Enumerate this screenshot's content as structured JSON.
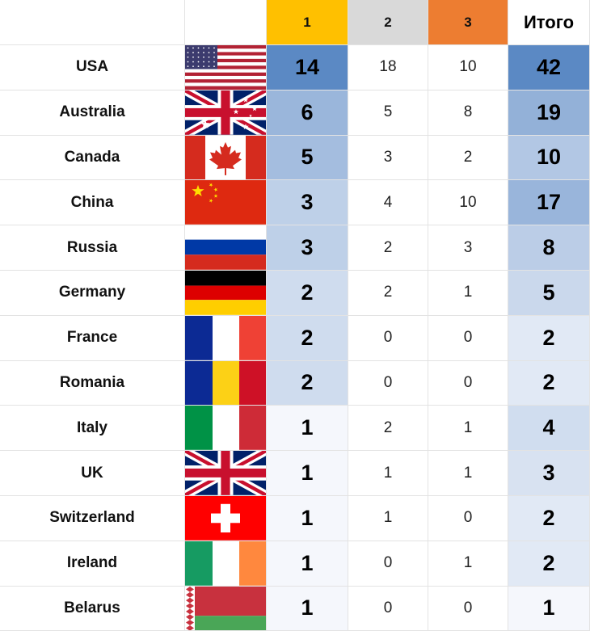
{
  "header": {
    "col_gold": "1",
    "col_silver": "2",
    "col_bronze": "3",
    "col_total": "Итого"
  },
  "colors": {
    "gold_header": "#ffc000",
    "silver_header": "#d9d9d9",
    "bronze_header": "#ed7d31",
    "scale_high": "#5b89c4",
    "scale_low": "#f5f7fc"
  },
  "rows": [
    {
      "country": "USA",
      "flag": "usa-flag-icon",
      "gold": 14,
      "silver": 18,
      "bronze": 10,
      "total": 42
    },
    {
      "country": "Australia",
      "flag": "australia-flag-icon",
      "gold": 6,
      "silver": 5,
      "bronze": 8,
      "total": 19
    },
    {
      "country": "Canada",
      "flag": "canada-flag-icon",
      "gold": 5,
      "silver": 3,
      "bronze": 2,
      "total": 10
    },
    {
      "country": "China",
      "flag": "china-flag-icon",
      "gold": 3,
      "silver": 4,
      "bronze": 10,
      "total": 17
    },
    {
      "country": "Russia",
      "flag": "russia-flag-icon",
      "gold": 3,
      "silver": 2,
      "bronze": 3,
      "total": 8
    },
    {
      "country": "Germany",
      "flag": "germany-flag-icon",
      "gold": 2,
      "silver": 2,
      "bronze": 1,
      "total": 5
    },
    {
      "country": "France",
      "flag": "france-flag-icon",
      "gold": 2,
      "silver": 0,
      "bronze": 0,
      "total": 2
    },
    {
      "country": "Romania",
      "flag": "romania-flag-icon",
      "gold": 2,
      "silver": 0,
      "bronze": 0,
      "total": 2
    },
    {
      "country": "Italy",
      "flag": "italy-flag-icon",
      "gold": 1,
      "silver": 2,
      "bronze": 1,
      "total": 4
    },
    {
      "country": "UK",
      "flag": "uk-flag-icon",
      "gold": 1,
      "silver": 1,
      "bronze": 1,
      "total": 3
    },
    {
      "country": "Switzerland",
      "flag": "switzerland-flag-icon",
      "gold": 1,
      "silver": 1,
      "bronze": 0,
      "total": 2
    },
    {
      "country": "Ireland",
      "flag": "ireland-flag-icon",
      "gold": 1,
      "silver": 0,
      "bronze": 1,
      "total": 2
    },
    {
      "country": "Belarus",
      "flag": "belarus-flag-icon",
      "gold": 1,
      "silver": 0,
      "bronze": 0,
      "total": 1
    }
  ]
}
